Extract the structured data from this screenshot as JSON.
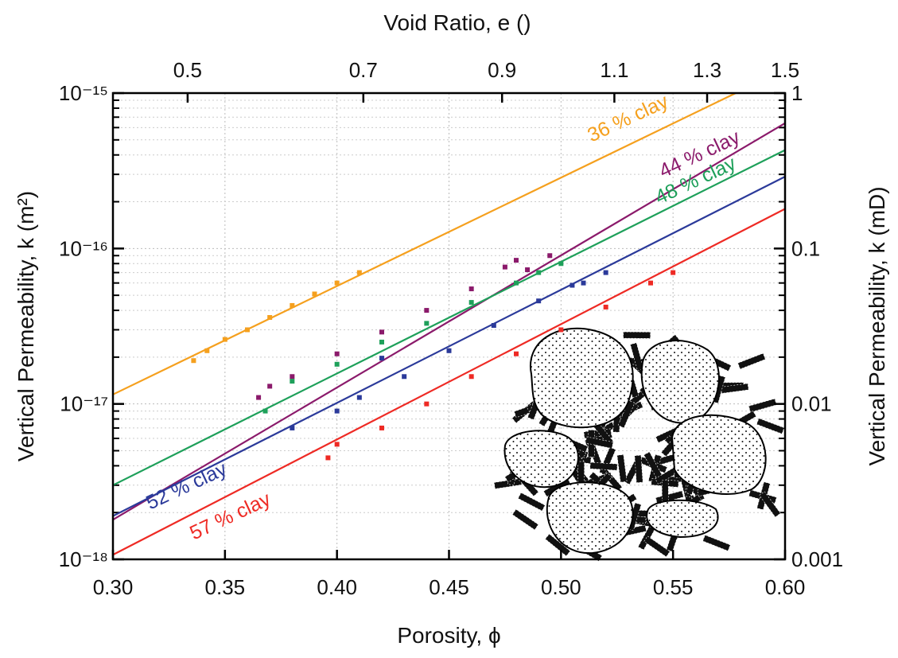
{
  "chart_data": {
    "type": "scatter",
    "x_label": "Porosity, ϕ",
    "x2_label": "Void Ratio, e ()",
    "y_label": "Vertical Permeability, k (m²)",
    "y2_label": "Vertical Permeability, k (mD)",
    "log_y": true,
    "grid": true,
    "minor_grid": true,
    "xlim": [
      0.3,
      0.6
    ],
    "xticks": [
      {
        "value": 0.3,
        "label": "0.30"
      },
      0.35,
      {
        "value": 0.4,
        "label": "0.40"
      },
      0.45,
      {
        "value": 0.5,
        "label": "0.50"
      },
      0.55,
      {
        "value": 0.6,
        "label": "0.60"
      }
    ],
    "x2ticks": [
      0.5,
      0.7,
      0.9,
      1.1,
      1.3,
      1.5
    ],
    "ylim": [
      1e-18,
      1e-15
    ],
    "yticks": [
      {
        "value": 1e-18,
        "label": "10⁻¹⁸"
      },
      {
        "value": 1e-17,
        "label": "10⁻¹⁷"
      },
      {
        "value": 1e-16,
        "label": "10⁻¹⁶"
      },
      {
        "value": 1e-15,
        "label": "10⁻¹⁵"
      }
    ],
    "y2lim": [
      0.001,
      1
    ],
    "y2ticks": [
      0.001,
      0.01,
      0.1,
      1
    ],
    "series": [
      {
        "name": "36 % clay",
        "color": "#f5a01e",
        "x": [
          0.336,
          0.342,
          0.35,
          0.36,
          0.37,
          0.38,
          0.39,
          0.4,
          0.41
        ],
        "values": [
          1.9e-17,
          2.2e-17,
          2.6e-17,
          3e-17,
          3.6e-17,
          4.3e-17,
          5.1e-17,
          6e-17,
          7e-17
        ],
        "fit_x": [
          0.3,
          0.578
        ],
        "fit_values": [
          1.15e-17,
          1e-15
        ]
      },
      {
        "name": "44 % clay",
        "color": "#8b1a6b",
        "x": [
          0.365,
          0.37,
          0.38,
          0.4,
          0.42,
          0.44,
          0.46,
          0.475,
          0.48,
          0.485,
          0.495
        ],
        "values": [
          1.1e-17,
          1.3e-17,
          1.5e-17,
          2.1e-17,
          2.9e-17,
          4e-17,
          5.5e-17,
          7.6e-17,
          8.4e-17,
          7.3e-17,
          9e-17
        ],
        "fit_x": [
          0.3,
          0.6
        ],
        "fit_values": [
          1.8e-18,
          6.4e-16
        ]
      },
      {
        "name": "48 % clay",
        "color": "#1ea05a",
        "x": [
          0.368,
          0.38,
          0.4,
          0.42,
          0.44,
          0.46,
          0.48,
          0.49,
          0.5
        ],
        "values": [
          9e-18,
          1.4e-17,
          1.8e-17,
          2.5e-17,
          3.3e-17,
          4.5e-17,
          6e-17,
          7e-17,
          8e-17
        ],
        "fit_x": [
          0.3,
          0.6
        ],
        "fit_values": [
          3e-18,
          4.3e-16
        ]
      },
      {
        "name": "52 % clay",
        "color": "#2b3a9a",
        "x": [
          0.38,
          0.4,
          0.41,
          0.42,
          0.43,
          0.45,
          0.47,
          0.49,
          0.505,
          0.51,
          0.52
        ],
        "values": [
          7e-18,
          9e-18,
          1.1e-17,
          1.97e-17,
          1.5e-17,
          2.2e-17,
          3.2e-17,
          4.6e-17,
          5.8e-17,
          6e-17,
          7e-17
        ],
        "fit_x": [
          0.3,
          0.6
        ],
        "fit_values": [
          1.9e-18,
          2.9e-16
        ]
      },
      {
        "name": "57 % clay",
        "color": "#ee2a24",
        "x": [
          0.396,
          0.4,
          0.42,
          0.44,
          0.46,
          0.48,
          0.5,
          0.52,
          0.54,
          0.55
        ],
        "values": [
          4.5e-18,
          5.5e-18,
          7e-18,
          1e-17,
          1.5e-17,
          2.1e-17,
          3e-17,
          4.2e-17,
          6e-17,
          7e-17
        ],
        "fit_x": [
          0.3,
          0.6
        ],
        "fit_values": [
          1.07e-18,
          1.8e-16
        ]
      }
    ]
  }
}
